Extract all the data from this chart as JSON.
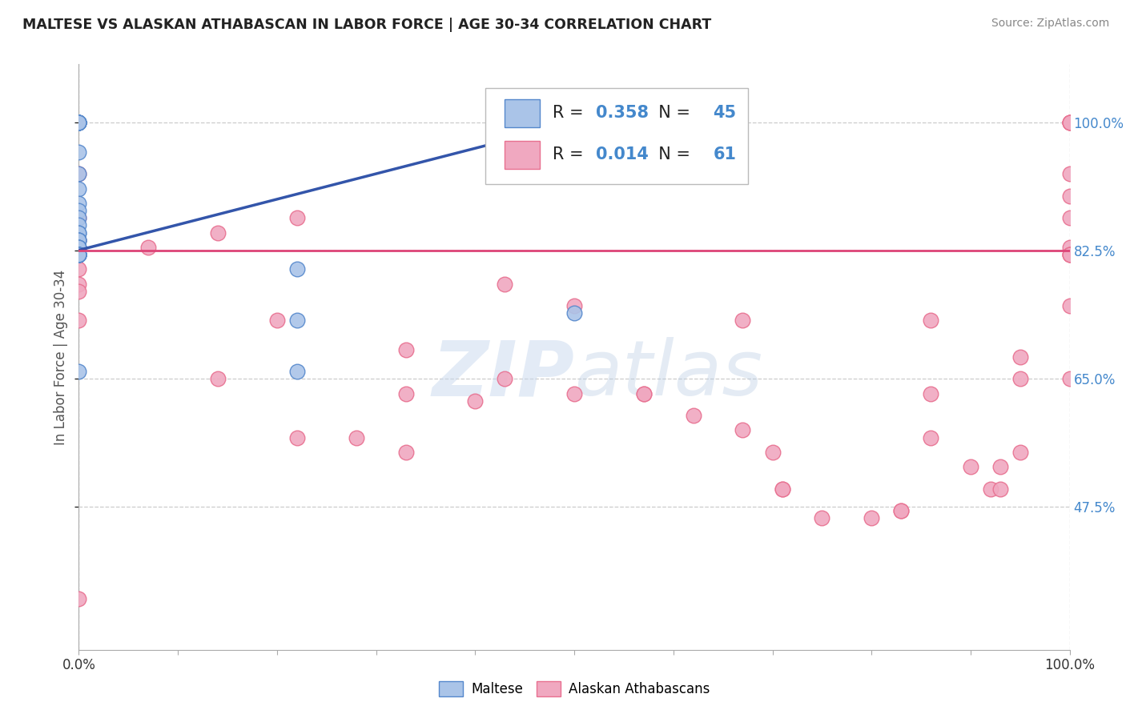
{
  "title": "MALTESE VS ALASKAN ATHABASCAN IN LABOR FORCE | AGE 30-34 CORRELATION CHART",
  "source": "Source: ZipAtlas.com",
  "ylabel": "In Labor Force | Age 30-34",
  "xlim": [
    0.0,
    1.0
  ],
  "ylim": [
    0.28,
    1.08
  ],
  "xtick_positions": [
    0.0,
    0.1,
    0.2,
    0.3,
    0.4,
    0.5,
    0.6,
    0.7,
    0.8,
    0.9,
    1.0
  ],
  "xtick_labels": [
    "0.0%",
    "",
    "",
    "",
    "",
    "",
    "",
    "",
    "",
    "",
    "100.0%"
  ],
  "ytick_vals": [
    0.475,
    0.65,
    0.825,
    1.0
  ],
  "ytick_labels": [
    "47.5%",
    "65.0%",
    "82.5%",
    "100.0%"
  ],
  "blue_R": "0.358",
  "blue_N": "45",
  "pink_R": "0.014",
  "pink_N": "61",
  "blue_color": "#aac4e8",
  "pink_color": "#f0a8c0",
  "blue_edge": "#5588cc",
  "pink_edge": "#e87090",
  "trend_blue": "#3355aa",
  "trend_pink": "#dd4477",
  "watermark_zip": "ZIP",
  "watermark_atlas": "atlas",
  "background_color": "#ffffff",
  "dashed_color": "#cccccc",
  "blue_scatter_x": [
    0.0,
    0.0,
    0.0,
    0.0,
    0.0,
    0.0,
    0.0,
    0.0,
    0.0,
    0.0,
    0.0,
    0.0,
    0.0,
    0.0,
    0.0,
    0.0,
    0.0,
    0.0,
    0.0,
    0.0,
    0.0,
    0.0,
    0.0,
    0.0,
    0.0,
    0.0,
    0.0,
    0.0,
    0.0,
    0.0,
    0.0,
    0.0,
    0.0,
    0.0,
    0.0,
    0.0,
    0.0,
    0.0,
    0.0,
    0.0,
    0.0,
    0.22,
    0.22,
    0.22,
    0.5
  ],
  "blue_scatter_y": [
    1.0,
    1.0,
    1.0,
    1.0,
    1.0,
    1.0,
    1.0,
    1.0,
    1.0,
    1.0,
    0.96,
    0.93,
    0.91,
    0.89,
    0.88,
    0.87,
    0.86,
    0.85,
    0.85,
    0.84,
    0.84,
    0.84,
    0.83,
    0.83,
    0.83,
    0.82,
    0.82,
    0.82,
    0.82,
    0.82,
    0.82,
    0.82,
    0.82,
    0.82,
    0.82,
    0.82,
    0.82,
    0.82,
    0.82,
    0.82,
    0.66,
    0.8,
    0.73,
    0.66,
    0.74
  ],
  "pink_scatter_x": [
    0.0,
    0.0,
    0.0,
    0.0,
    0.0,
    0.0,
    0.0,
    0.0,
    0.0,
    0.0,
    0.0,
    0.07,
    0.14,
    0.14,
    0.2,
    0.22,
    0.22,
    0.28,
    0.33,
    0.33,
    0.33,
    0.4,
    0.43,
    0.43,
    0.5,
    0.5,
    0.57,
    0.57,
    0.62,
    0.67,
    0.67,
    0.7,
    0.71,
    0.71,
    0.75,
    0.8,
    0.83,
    0.83,
    0.86,
    0.86,
    0.86,
    0.9,
    0.92,
    0.93,
    0.93,
    0.95,
    0.95,
    0.95,
    1.0,
    1.0,
    1.0,
    1.0,
    1.0,
    1.0,
    1.0,
    1.0,
    1.0,
    1.0,
    1.0,
    1.0,
    1.0
  ],
  "pink_scatter_y": [
    1.0,
    0.93,
    0.87,
    0.84,
    0.82,
    0.82,
    0.8,
    0.78,
    0.77,
    0.73,
    0.35,
    0.83,
    0.85,
    0.65,
    0.73,
    0.87,
    0.57,
    0.57,
    0.69,
    0.63,
    0.55,
    0.62,
    0.78,
    0.65,
    0.75,
    0.63,
    0.63,
    0.63,
    0.6,
    0.73,
    0.58,
    0.55,
    0.5,
    0.5,
    0.46,
    0.46,
    0.47,
    0.47,
    0.73,
    0.63,
    0.57,
    0.53,
    0.5,
    0.5,
    0.53,
    0.68,
    0.65,
    0.55,
    1.0,
    1.0,
    1.0,
    1.0,
    0.93,
    0.9,
    0.87,
    0.83,
    0.82,
    0.82,
    0.82,
    0.75,
    0.65
  ],
  "blue_trend_x0": 0.0,
  "blue_trend_x1": 0.5,
  "blue_trend_y0": 0.826,
  "blue_trend_y1": 1.0,
  "pink_trend_x0": 0.0,
  "pink_trend_x1": 1.0,
  "pink_trend_y0": 0.826,
  "pink_trend_y1": 0.826
}
